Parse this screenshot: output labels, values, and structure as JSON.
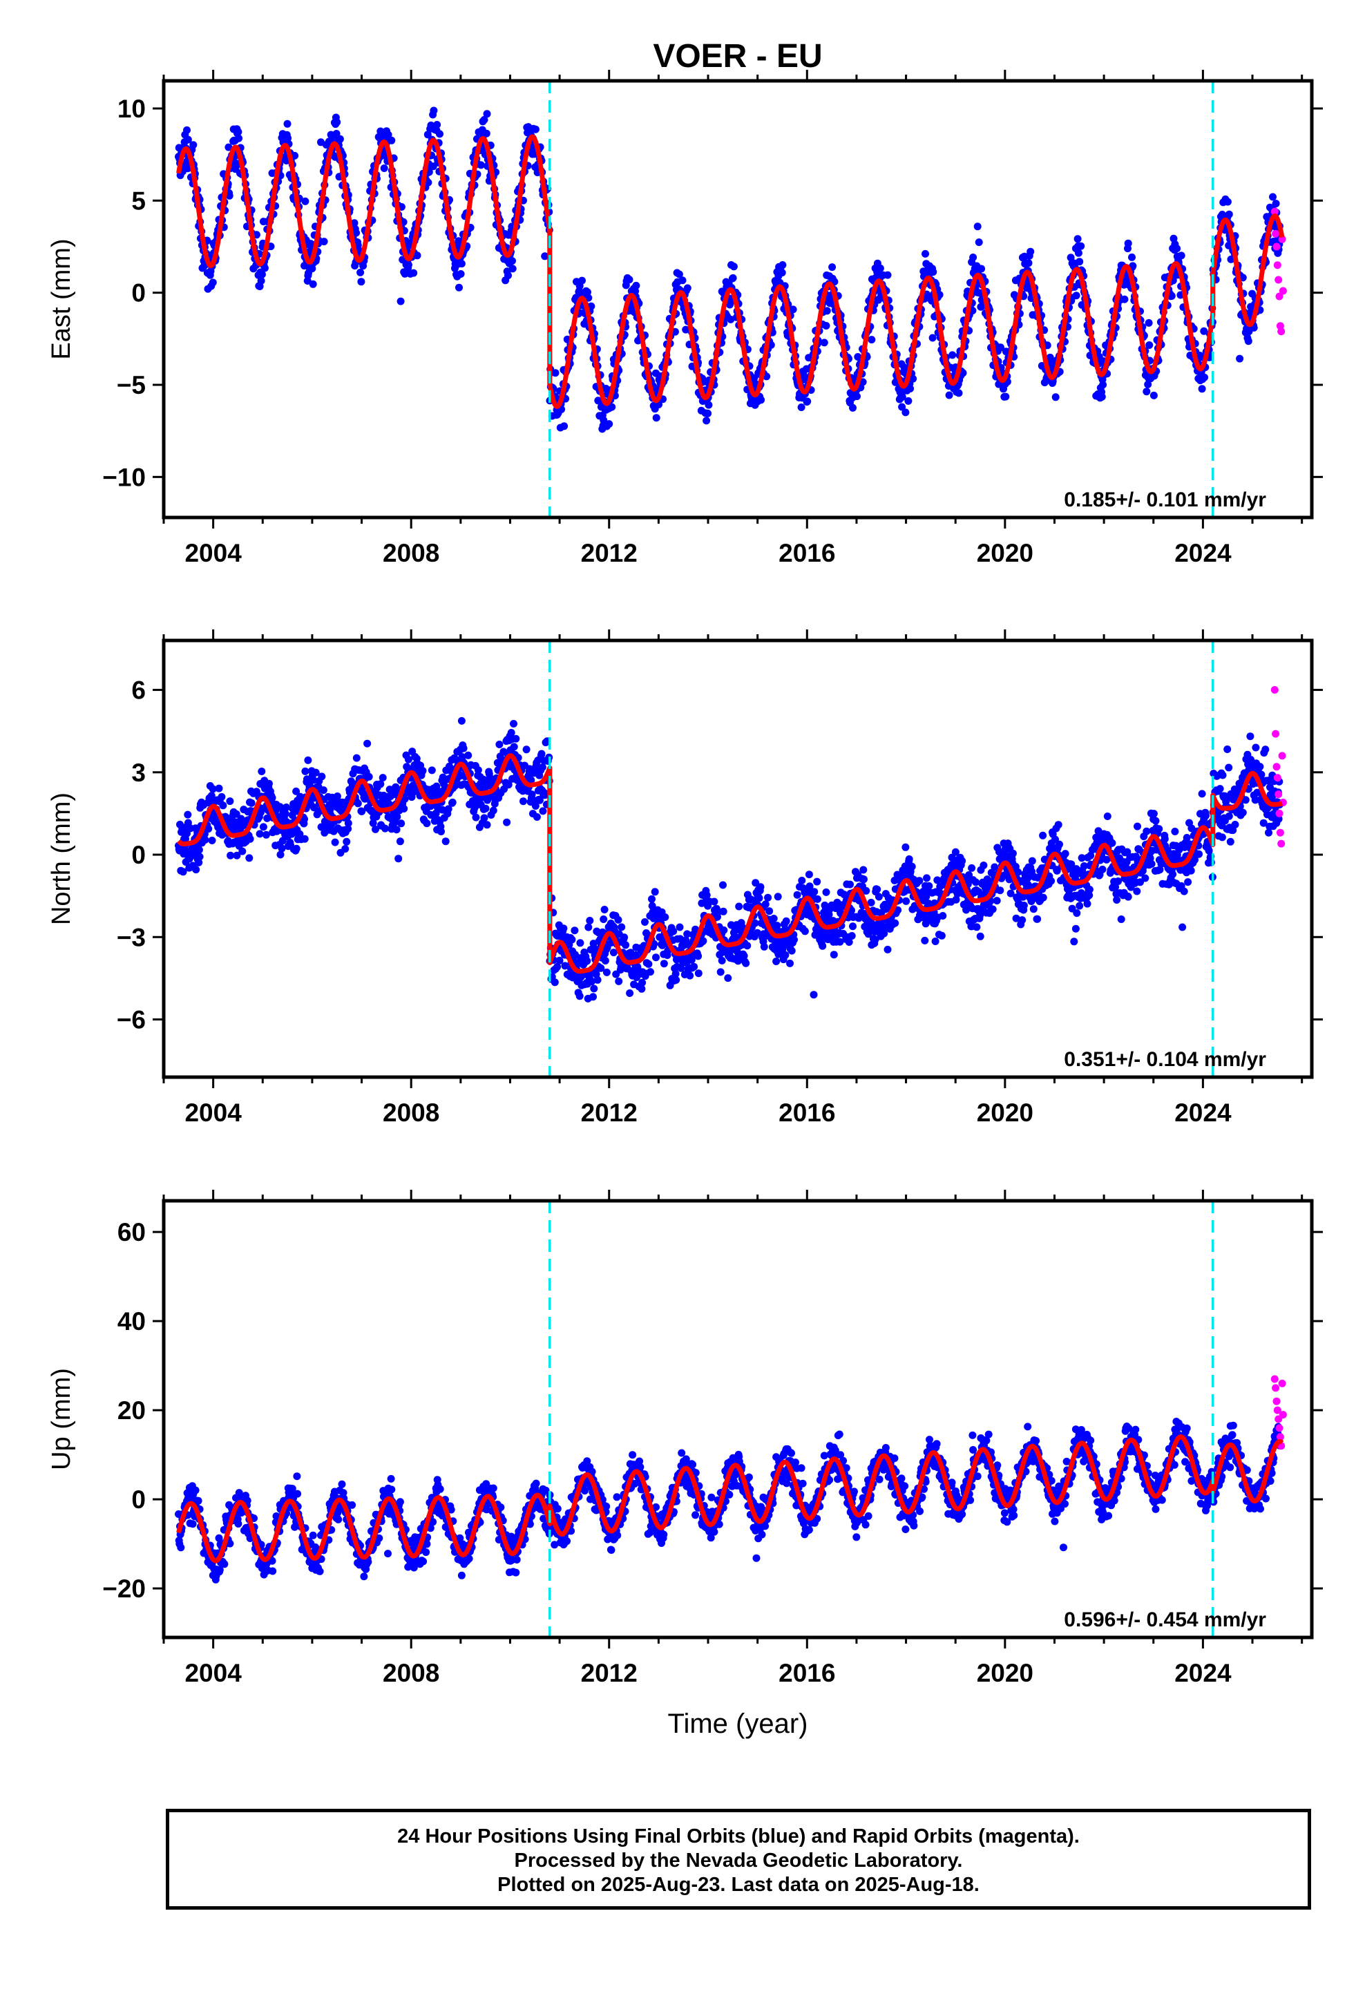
{
  "title": "VOER - EU",
  "xlabel": "Time (year)",
  "colors": {
    "final_orbits": "#0000ff",
    "rapid_orbits": "#ff00ff",
    "model": "#ff0000",
    "offsets": "#00e5ee"
  },
  "footer": {
    "line1": "24 Hour Positions Using Final Orbits (blue) and Rapid Orbits (magenta).",
    "line2": "Processed by the Nevada Geodetic Laboratory.",
    "line3": "Plotted on 2025-Aug-23. Last data on 2025-Aug-18."
  },
  "chart_data": [
    {
      "type": "scatter",
      "ylabel": "East (mm)",
      "xlim": [
        2003.0,
        2026.2
      ],
      "ylim": [
        -12.2,
        11.5
      ],
      "xticks": [
        "2004",
        "2008",
        "2012",
        "2016",
        "2020",
        "2024"
      ],
      "yticks": [
        "10",
        "5",
        "0",
        "−5",
        "−10"
      ],
      "ytick_values": [
        10,
        5,
        0,
        -5,
        -10
      ],
      "rate": "0.185+/- 0.101 mm/yr",
      "offsets": [
        2010.8,
        2024.2
      ],
      "model": {
        "segments": [
          {
            "from": 2003.3,
            "to": 2010.8,
            "level_start": 4.6,
            "level_end": 5.3,
            "annual_amplitude": 3.2,
            "peak_phase": 0.45
          },
          {
            "from": 2010.8,
            "to": 2024.2,
            "level_start": -3.3,
            "level_end": -1.2,
            "annual_amplitude": 2.9,
            "peak_phase": 0.45
          },
          {
            "from": 2024.2,
            "to": 2025.6,
            "level_start": 1.0,
            "level_end": 1.3,
            "annual_amplitude": 2.9,
            "peak_phase": 0.45
          }
        ]
      },
      "series": [
        {
          "name": "Final Orbits",
          "x_range": [
            2003.3,
            2025.55
          ],
          "scatter": 1.6
        },
        {
          "name": "Rapid Orbits",
          "x_range": [
            2025.45,
            2025.62
          ],
          "values": [
            4.4,
            3.2,
            2.5,
            1.5,
            0.7,
            -0.2,
            -1.8,
            -2.1,
            2.9,
            0.1
          ]
        }
      ]
    },
    {
      "type": "scatter",
      "ylabel": "North (mm)",
      "xlim": [
        2003.0,
        2026.2
      ],
      "ylim": [
        -8.1,
        7.8
      ],
      "xticks": [
        "2004",
        "2008",
        "2012",
        "2016",
        "2020",
        "2024"
      ],
      "yticks": [
        "6",
        "3",
        "0",
        "−3",
        "−6"
      ],
      "ytick_values": [
        6,
        3,
        0,
        -3,
        -6
      ],
      "rate": "0.351+/- 0.104 mm/yr",
      "offsets": [
        2010.8,
        2024.2
      ],
      "model": {
        "segments": [
          {
            "from": 2003.3,
            "to": 2010.8,
            "level_start": 0.8,
            "level_end": 3.1,
            "annual_amplitude": 0.6,
            "peak_phase": 0.0,
            "semiannual_amplitude": 0.15
          },
          {
            "from": 2010.8,
            "to": 2024.2,
            "level_start": -4.0,
            "level_end": 0.3,
            "annual_amplitude": 0.6,
            "peak_phase": 0.0,
            "semiannual_amplitude": 0.15
          },
          {
            "from": 2024.2,
            "to": 2025.6,
            "level_start": 2.1,
            "level_end": 2.3,
            "annual_amplitude": 0.6,
            "peak_phase": 0.0,
            "semiannual_amplitude": 0.15
          }
        ]
      },
      "series": [
        {
          "name": "Final Orbits",
          "x_range": [
            2003.3,
            2025.55
          ],
          "scatter": 1.3
        },
        {
          "name": "Rapid Orbits",
          "x_range": [
            2025.45,
            2025.62
          ],
          "values": [
            6.0,
            4.4,
            3.2,
            2.8,
            2.2,
            1.5,
            0.8,
            0.4,
            3.6,
            1.9
          ]
        }
      ]
    },
    {
      "type": "scatter",
      "ylabel": "Up (mm)",
      "xlim": [
        2003.0,
        2026.2
      ],
      "ylim": [
        -31,
        67
      ],
      "xticks": [
        "2004",
        "2008",
        "2012",
        "2016",
        "2020",
        "2024"
      ],
      "yticks": [
        "60",
        "40",
        "20",
        "0",
        "−20"
      ],
      "ytick_values": [
        60,
        40,
        20,
        0,
        -20
      ],
      "rate": "0.596+/- 0.454 mm/yr",
      "offsets": [
        2010.8,
        2024.2
      ],
      "model": {
        "segments": [
          {
            "from": 2003.3,
            "to": 2010.8,
            "level_start": -7.5,
            "level_end": -5.5,
            "annual_amplitude": 6.5,
            "peak_phase": 0.55
          },
          {
            "from": 2010.8,
            "to": 2024.2,
            "level_start": -1.5,
            "level_end": 8.0,
            "annual_amplitude": 6.5,
            "peak_phase": 0.55
          },
          {
            "from": 2024.2,
            "to": 2025.6,
            "level_start": 5.5,
            "level_end": 6.5,
            "annual_amplitude": 6.5,
            "peak_phase": 0.55
          }
        ]
      },
      "series": [
        {
          "name": "Final Orbits",
          "x_range": [
            2003.3,
            2025.55
          ],
          "scatter": 5.0
        },
        {
          "name": "Rapid Orbits",
          "x_range": [
            2025.45,
            2025.62
          ],
          "values": [
            27,
            25,
            22,
            20,
            18,
            16,
            14,
            12,
            26,
            19
          ]
        }
      ]
    }
  ]
}
